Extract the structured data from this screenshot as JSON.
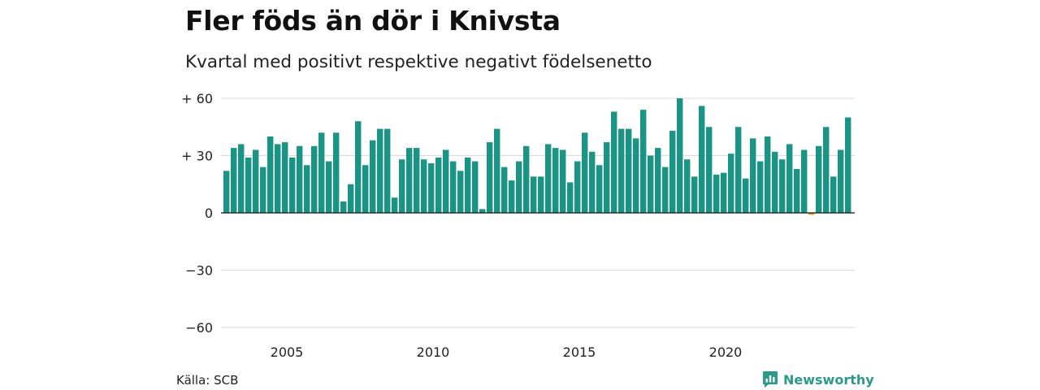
{
  "title": "Fler föds än dör i Knivsta",
  "subtitle": "Kvartal med positivt respektive negativt födelsenetto",
  "source": "Källa: SCB",
  "brand": "Newsworthy",
  "colors": {
    "positive": "#1a9585",
    "negative": "#e8a317",
    "grid": "#d9d9d9",
    "zero": "#111111",
    "brand": "#2c9a8a"
  },
  "icons": {
    "brand_logo": "bar-chart-speech-bubble-icon"
  },
  "chart_data": {
    "type": "bar",
    "title": "Fler föds än dör i Knivsta",
    "subtitle": "Kvartal med positivt respektive negativt födelsenetto",
    "xlabel": "",
    "ylabel": "",
    "ylim": [
      -60,
      60
    ],
    "grid": true,
    "y_ticks": [
      {
        "value": 60,
        "label": "+ 60"
      },
      {
        "value": 30,
        "label": "+ 30"
      },
      {
        "value": 0,
        "label": "0"
      },
      {
        "value": -30,
        "label": "−30"
      },
      {
        "value": -60,
        "label": "−60"
      }
    ],
    "x_ticks": [
      {
        "year": 2005,
        "label": "2005"
      },
      {
        "year": 2010,
        "label": "2010"
      },
      {
        "year": 2015,
        "label": "2015"
      },
      {
        "year": 2020,
        "label": "2020"
      }
    ],
    "start": "2003 Q1",
    "frequency": "quarter",
    "values": [
      22,
      34,
      36,
      29,
      33,
      24,
      40,
      36,
      37,
      29,
      35,
      25,
      35,
      42,
      27,
      42,
      6,
      15,
      48,
      25,
      38,
      44,
      44,
      8,
      28,
      34,
      34,
      28,
      26,
      29,
      33,
      27,
      22,
      29,
      27,
      2,
      37,
      44,
      24,
      17,
      27,
      35,
      19,
      19,
      36,
      34,
      33,
      16,
      27,
      42,
      32,
      25,
      37,
      53,
      44,
      44,
      39,
      54,
      30,
      34,
      24,
      43,
      60,
      28,
      19,
      56,
      45,
      20,
      21,
      31,
      45,
      18,
      39,
      27,
      40,
      32,
      28,
      36,
      23,
      33,
      -1,
      35,
      45,
      19,
      33,
      50
    ]
  }
}
